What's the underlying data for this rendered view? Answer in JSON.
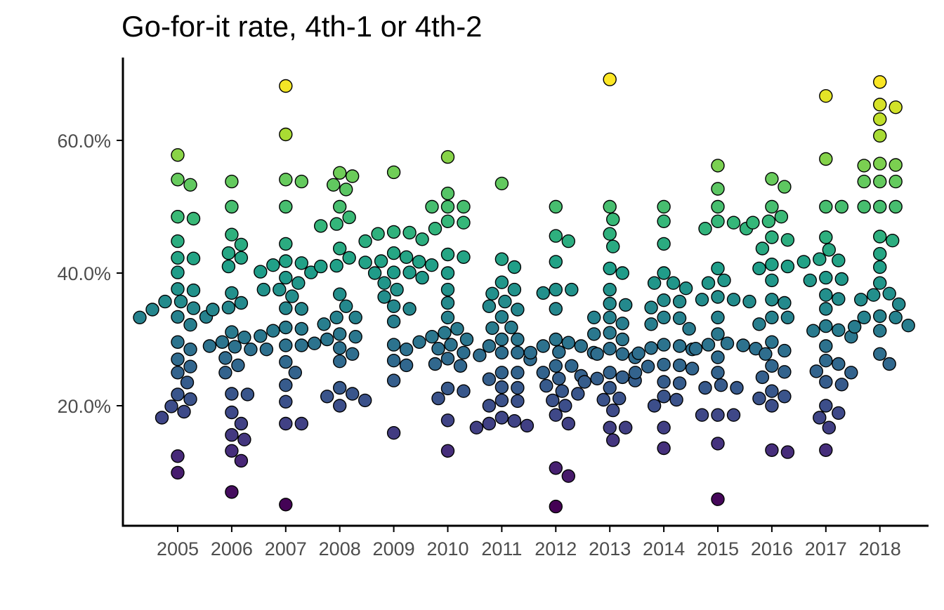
{
  "chart_data": {
    "type": "scatter",
    "title": "Go-for-it rate, 4th-1 or 4th-2",
    "xlabel": "",
    "ylabel": "",
    "ylim": [
      0.035,
      0.725
    ],
    "grid": false,
    "legend": "none",
    "colormap": "viridis",
    "point_edge_color": "#000000",
    "axis_color": "#000000",
    "tick_label_color": "#4d4d4d",
    "categories": [
      "2005",
      "2006",
      "2007",
      "2008",
      "2009",
      "2010",
      "2011",
      "2012",
      "2013",
      "2014",
      "2015",
      "2016",
      "2017",
      "2018"
    ],
    "y_ticks": [
      {
        "value": 0.2,
        "label": "20.0%"
      },
      {
        "value": 0.4,
        "label": "40.0%"
      },
      {
        "value": 0.6,
        "label": "60.0%"
      }
    ],
    "series": [
      {
        "category": "2005",
        "values": [
          0.578,
          0.541,
          0.533,
          0.485,
          0.482,
          0.448,
          0.423,
          0.422,
          0.401,
          0.376,
          0.374,
          0.357,
          0.357,
          0.347,
          0.345,
          0.334,
          0.334,
          0.333,
          0.322,
          0.296,
          0.285,
          0.27,
          0.259,
          0.25,
          0.235,
          0.217,
          0.21,
          0.199,
          0.191,
          0.182,
          0.124,
          0.099
        ]
      },
      {
        "category": "2006",
        "values": [
          0.538,
          0.5,
          0.458,
          0.443,
          0.43,
          0.423,
          0.41,
          0.37,
          0.355,
          0.348,
          0.345,
          0.311,
          0.303,
          0.296,
          0.29,
          0.289,
          0.285,
          0.285,
          0.272,
          0.261,
          0.25,
          0.218,
          0.217,
          0.19,
          0.173,
          0.156,
          0.149,
          0.132,
          0.117,
          0.07
        ]
      },
      {
        "category": "2007",
        "values": [
          0.682,
          0.609,
          0.541,
          0.538,
          0.5,
          0.444,
          0.418,
          0.415,
          0.412,
          0.402,
          0.401,
          0.393,
          0.385,
          0.375,
          0.375,
          0.365,
          0.347,
          0.346,
          0.318,
          0.316,
          0.313,
          0.305,
          0.291,
          0.291,
          0.266,
          0.25,
          0.231,
          0.206,
          0.173,
          0.173,
          0.051
        ]
      },
      {
        "category": "2008",
        "values": [
          0.551,
          0.546,
          0.533,
          0.526,
          0.5,
          0.484,
          0.474,
          0.471,
          0.437,
          0.423,
          0.411,
          0.41,
          0.368,
          0.35,
          0.333,
          0.333,
          0.323,
          0.308,
          0.304,
          0.3,
          0.294,
          0.287,
          0.278,
          0.267,
          0.227,
          0.218,
          0.214,
          0.208,
          0.2
        ]
      },
      {
        "category": "2009",
        "values": [
          0.552,
          0.462,
          0.461,
          0.459,
          0.451,
          0.448,
          0.43,
          0.424,
          0.418,
          0.417,
          0.416,
          0.412,
          0.401,
          0.401,
          0.4,
          0.393,
          0.385,
          0.375,
          0.364,
          0.35,
          0.346,
          0.327,
          0.292,
          0.285,
          0.268,
          0.261,
          0.238,
          0.159
        ]
      },
      {
        "category": "2010",
        "values": [
          0.575,
          0.52,
          0.5,
          0.5,
          0.5,
          0.478,
          0.476,
          0.467,
          0.428,
          0.424,
          0.4,
          0.375,
          0.355,
          0.333,
          0.316,
          0.31,
          0.304,
          0.3,
          0.296,
          0.292,
          0.286,
          0.28,
          0.271,
          0.263,
          0.26,
          0.226,
          0.222,
          0.211,
          0.178,
          0.132
        ]
      },
      {
        "category": "2011",
        "values": [
          0.535,
          0.421,
          0.409,
          0.386,
          0.375,
          0.369,
          0.357,
          0.35,
          0.345,
          0.334,
          0.318,
          0.317,
          0.3,
          0.3,
          0.29,
          0.28,
          0.28,
          0.276,
          0.27,
          0.25,
          0.25,
          0.24,
          0.228,
          0.227,
          0.207,
          0.208,
          0.2,
          0.182,
          0.177,
          0.173,
          0.17,
          0.167
        ]
      },
      {
        "category": "2012",
        "values": [
          0.5,
          0.456,
          0.448,
          0.417,
          0.375,
          0.375,
          0.37,
          0.346,
          0.3,
          0.295,
          0.29,
          0.29,
          0.281,
          0.28,
          0.28,
          0.26,
          0.26,
          0.25,
          0.245,
          0.241,
          0.23,
          0.222,
          0.218,
          0.208,
          0.2,
          0.186,
          0.173,
          0.106,
          0.094,
          0.048
        ]
      },
      {
        "category": "2013",
        "values": [
          0.692,
          0.5,
          0.481,
          0.459,
          0.44,
          0.407,
          0.4,
          0.375,
          0.354,
          0.352,
          0.333,
          0.333,
          0.324,
          0.31,
          0.308,
          0.3,
          0.286,
          0.278,
          0.278,
          0.273,
          0.25,
          0.243,
          0.241,
          0.238,
          0.236,
          0.227,
          0.211,
          0.209,
          0.193,
          0.167,
          0.167,
          0.148
        ]
      },
      {
        "category": "2014",
        "values": [
          0.5,
          0.478,
          0.444,
          0.4,
          0.385,
          0.385,
          0.377,
          0.359,
          0.357,
          0.348,
          0.333,
          0.332,
          0.323,
          0.316,
          0.292,
          0.29,
          0.287,
          0.285,
          0.279,
          0.262,
          0.261,
          0.259,
          0.256,
          0.25,
          0.236,
          0.234,
          0.214,
          0.209,
          0.2,
          0.167,
          0.136
        ]
      },
      {
        "category": "2015",
        "values": [
          0.562,
          0.527,
          0.5,
          0.478,
          0.476,
          0.467,
          0.467,
          0.407,
          0.389,
          0.385,
          0.364,
          0.36,
          0.36,
          0.357,
          0.333,
          0.308,
          0.294,
          0.292,
          0.291,
          0.286,
          0.286,
          0.273,
          0.25,
          0.231,
          0.227,
          0.227,
          0.186,
          0.186,
          0.186,
          0.143,
          0.059
        ]
      },
      {
        "category": "2016",
        "values": [
          0.542,
          0.53,
          0.5,
          0.485,
          0.478,
          0.476,
          0.454,
          0.45,
          0.437,
          0.413,
          0.41,
          0.407,
          0.389,
          0.36,
          0.355,
          0.333,
          0.333,
          0.323,
          0.296,
          0.283,
          0.278,
          0.26,
          0.251,
          0.243,
          0.222,
          0.214,
          0.211,
          0.2,
          0.133,
          0.13
        ]
      },
      {
        "category": "2017",
        "values": [
          0.667,
          0.572,
          0.5,
          0.5,
          0.454,
          0.435,
          0.421,
          0.419,
          0.417,
          0.393,
          0.391,
          0.389,
          0.367,
          0.361,
          0.346,
          0.32,
          0.314,
          0.313,
          0.304,
          0.29,
          0.268,
          0.263,
          0.252,
          0.25,
          0.236,
          0.232,
          0.2,
          0.189,
          0.182,
          0.167,
          0.133
        ]
      },
      {
        "category": "2018",
        "values": [
          0.688,
          0.654,
          0.65,
          0.632,
          0.607,
          0.565,
          0.563,
          0.562,
          0.538,
          0.538,
          0.538,
          0.5,
          0.5,
          0.5,
          0.455,
          0.449,
          0.429,
          0.409,
          0.385,
          0.369,
          0.367,
          0.36,
          0.353,
          0.335,
          0.333,
          0.333,
          0.321,
          0.319,
          0.313,
          0.278,
          0.263
        ]
      }
    ]
  }
}
